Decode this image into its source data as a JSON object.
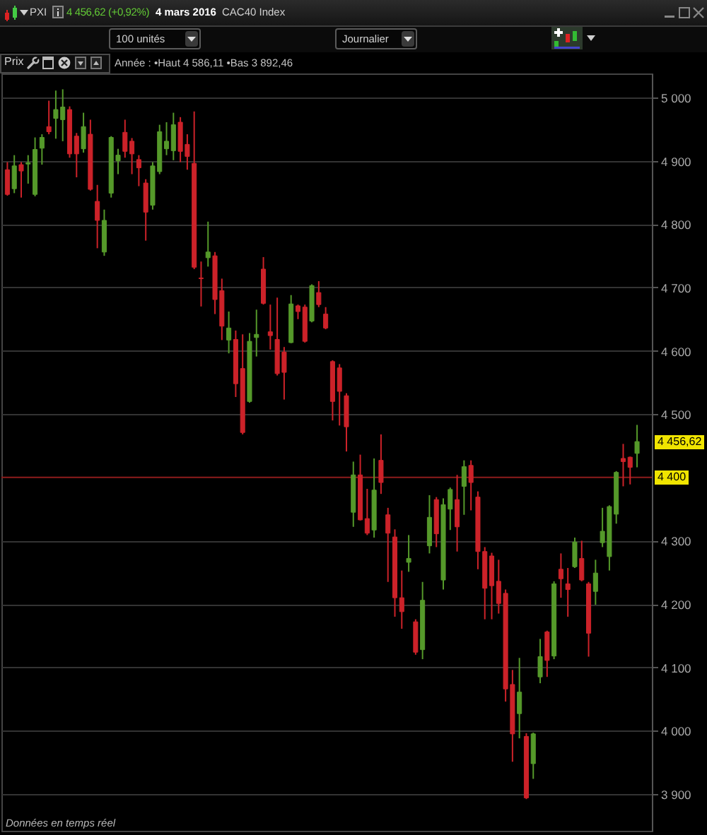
{
  "chart_data": {
    "type": "candlestick",
    "title": "PXI",
    "categories": [
      null,
      null,
      null,
      null,
      null,
      null,
      null,
      null,
      null,
      null,
      null,
      null,
      null,
      null,
      null,
      null,
      null,
      null,
      null,
      null,
      null,
      null,
      null,
      null,
      null,
      null,
      null,
      null,
      null,
      null,
      null,
      null,
      null,
      null,
      null,
      null,
      null,
      null,
      null,
      null,
      null,
      null,
      null,
      null,
      null,
      null,
      null,
      null,
      null,
      null,
      null,
      null,
      null,
      null,
      null,
      null,
      null,
      null,
      null,
      null,
      null,
      null,
      null,
      null,
      null,
      null,
      null,
      null,
      null,
      null,
      null,
      null,
      null,
      null,
      null,
      null,
      null,
      null,
      null,
      null,
      null,
      null,
      null,
      null,
      null,
      null,
      null,
      null,
      null,
      null,
      null,
      null
    ],
    "ohlc": [
      [
        4886,
        4898,
        4845,
        4847
      ],
      [
        4856,
        4909,
        4849,
        4892
      ],
      [
        4894,
        4898,
        4842,
        4884
      ],
      [
        4895,
        4909,
        4864,
        4897
      ],
      [
        4847,
        4937,
        4844,
        4918
      ],
      [
        4920,
        4942,
        4894,
        4937
      ],
      [
        4954,
        4995,
        4942,
        4946
      ],
      [
        4967,
        5011,
        4935,
        4981
      ],
      [
        4965,
        5013,
        4931,
        4985
      ],
      [
        4981,
        4986,
        4905,
        4911
      ],
      [
        4939,
        4944,
        4874,
        4911
      ],
      [
        4919,
        4976,
        4913,
        4954
      ],
      [
        4942,
        4965,
        4853,
        4855
      ],
      [
        4836,
        4862,
        4762,
        4806
      ],
      [
        4756,
        4823,
        4750,
        4806
      ],
      [
        4849,
        4939,
        4842,
        4937
      ],
      [
        4900,
        4919,
        4879,
        4909
      ],
      [
        4945,
        4965,
        4905,
        4915
      ],
      [
        4931,
        4936,
        4879,
        4911
      ],
      [
        4902,
        4909,
        4860,
        4889
      ],
      [
        4865,
        4871,
        4774,
        4819
      ],
      [
        4830,
        4898,
        4823,
        4892
      ],
      [
        4883,
        4957,
        4879,
        4946
      ],
      [
        4919,
        4961,
        4909,
        4931
      ],
      [
        4916,
        4976,
        4901,
        4957
      ],
      [
        4961,
        4969,
        4898,
        4915
      ],
      [
        4926,
        4942,
        4886,
        4907
      ],
      [
        4896,
        4978,
        4729,
        4732
      ],
      [
        4715,
        4741,
        4670,
        4714
      ],
      [
        4747,
        4804,
        4733,
        4756
      ],
      [
        4750,
        4756,
        4658,
        4681
      ],
      [
        4695,
        4714,
        4617,
        4639
      ],
      [
        4617,
        4662,
        4596,
        4636
      ],
      [
        4618,
        4632,
        4527,
        4548
      ],
      [
        4572,
        4626,
        4468,
        4471
      ],
      [
        4520,
        4628,
        4518,
        4615
      ],
      [
        4621,
        4665,
        4591,
        4626
      ],
      [
        4729,
        4748,
        4673,
        4675
      ],
      [
        4630,
        4673,
        4602,
        4624
      ],
      [
        4618,
        4684,
        4561,
        4564
      ],
      [
        4598,
        4606,
        4523,
        4566
      ],
      [
        4613,
        4688,
        4612,
        4674
      ],
      [
        4671,
        4673,
        4650,
        4662
      ],
      [
        4669,
        4673,
        4613,
        4615
      ],
      [
        4647,
        4705,
        4645,
        4703
      ],
      [
        4692,
        4710,
        4669,
        4673
      ],
      [
        4658,
        4669,
        4634,
        4636
      ],
      [
        4583,
        4585,
        4490,
        4520
      ],
      [
        4573,
        4579,
        4482,
        4536
      ],
      [
        4529,
        4533,
        4441,
        4480
      ],
      [
        4345,
        4425,
        4322,
        4404
      ],
      [
        4404,
        4436,
        4332,
        4333
      ],
      [
        4335,
        4382,
        4309,
        4312
      ],
      [
        4317,
        4430,
        4305,
        4380
      ],
      [
        4427,
        4468,
        4374,
        4392
      ],
      [
        4341,
        4352,
        4235,
        4312
      ],
      [
        4306,
        4318,
        4180,
        4210
      ],
      [
        4210,
        4253,
        4161,
        4188
      ],
      [
        4266,
        4309,
        4251,
        4272
      ],
      [
        4172,
        4176,
        4120,
        4124
      ],
      [
        4128,
        4235,
        4113,
        4206
      ],
      [
        4292,
        4372,
        4280,
        4337
      ],
      [
        4365,
        4369,
        4290,
        4311
      ],
      [
        4238,
        4367,
        4223,
        4357
      ],
      [
        4350,
        4384,
        4317,
        4381
      ],
      [
        4365,
        4404,
        4283,
        4322
      ],
      [
        4386,
        4427,
        4341,
        4417
      ],
      [
        4419,
        4427,
        4348,
        4392
      ],
      [
        4369,
        4378,
        4255,
        4283
      ],
      [
        4283,
        4290,
        4176,
        4225
      ],
      [
        4276,
        4281,
        4176,
        4229
      ],
      [
        4236,
        4270,
        4185,
        4201
      ],
      [
        4217,
        4223,
        4046,
        4066
      ],
      [
        4073,
        4096,
        3951,
        3995
      ],
      [
        4027,
        4115,
        3988,
        4061
      ],
      [
        3991,
        3996,
        3892,
        3894
      ],
      [
        3948,
        3997,
        3924,
        3995
      ],
      [
        4085,
        4145,
        4075,
        4117
      ],
      [
        4156,
        4158,
        4085,
        4111
      ],
      [
        4118,
        4236,
        4113,
        4232
      ],
      [
        4255,
        4280,
        4210,
        4240
      ],
      [
        4232,
        4257,
        4180,
        4223
      ],
      [
        4259,
        4305,
        4257,
        4298
      ],
      [
        4272,
        4300,
        4236,
        4238
      ],
      [
        4232,
        4235,
        4117,
        4154
      ],
      [
        4220,
        4270,
        4199,
        4249
      ],
      [
        4297,
        4352,
        4290,
        4315
      ],
      [
        4275,
        4356,
        4253,
        4354
      ],
      [
        4342,
        4410,
        4327,
        4408
      ],
      [
        4430,
        4453,
        4386,
        4425
      ],
      [
        4432,
        4433,
        4389,
        4416
      ],
      [
        4438,
        4483,
        4416,
        4456.62
      ]
    ],
    "colors": [
      "#cc2229",
      "#55992a",
      "#cc2229",
      "#55992a",
      "#55992a",
      "#55992a",
      "#cc2229",
      "#55992a",
      "#55992a",
      "#cc2229",
      "#cc2229",
      "#55992a",
      "#cc2229",
      "#cc2229",
      "#55992a",
      "#55992a",
      "#55992a",
      "#cc2229",
      "#cc2229",
      "#cc2229",
      "#cc2229",
      "#55992a",
      "#55992a",
      "#55992a",
      "#55992a",
      "#cc2229",
      "#cc2229",
      "#cc2229",
      "#cc2229",
      "#55992a",
      "#cc2229",
      "#cc2229",
      "#55992a",
      "#cc2229",
      "#cc2229",
      "#55992a",
      "#55992a",
      "#cc2229",
      "#cc2229",
      "#cc2229",
      "#cc2229",
      "#55992a",
      "#cc2229",
      "#cc2229",
      "#55992a",
      "#cc2229",
      "#cc2229",
      "#cc2229",
      "#cc2229",
      "#cc2229",
      "#55992a",
      "#cc2229",
      "#cc2229",
      "#55992a",
      "#cc2229",
      "#cc2229",
      "#cc2229",
      "#cc2229",
      "#55992a",
      "#cc2229",
      "#55992a",
      "#55992a",
      "#cc2229",
      "#55992a",
      "#55992a",
      "#cc2229",
      "#55992a",
      "#cc2229",
      "#cc2229",
      "#cc2229",
      "#cc2229",
      "#cc2229",
      "#cc2229",
      "#cc2229",
      "#55992a",
      "#cc2229",
      "#55992a",
      "#55992a",
      "#cc2229",
      "#55992a",
      "#cc2229",
      "#cc2229",
      "#55992a",
      "#cc2229",
      "#cc2229",
      "#55992a",
      "#55992a",
      "#55992a",
      "#55992a",
      "#cc2229",
      "#cc2229",
      "#55992a"
    ],
    "ylim": [
      3842,
      5038
    ],
    "yticks": [
      {
        "value": 5000,
        "label": "5 000"
      },
      {
        "value": 4900,
        "label": "4 900"
      },
      {
        "value": 4800,
        "label": "4 800"
      },
      {
        "value": 4700,
        "label": "4 700"
      },
      {
        "value": 4600,
        "label": "4 600"
      },
      {
        "value": 4500,
        "label": "4 500"
      },
      {
        "value": 4300,
        "label": "4 300"
      },
      {
        "value": 4200,
        "label": "4 200"
      },
      {
        "value": 4100,
        "label": "4 100"
      },
      {
        "value": 4000,
        "label": "4 000"
      },
      {
        "value": 3900,
        "label": "3 900"
      }
    ],
    "grid": "y",
    "tick_labels": "y",
    "ref_lines": [
      {
        "axis": "y",
        "value": 4400,
        "label": "4 400",
        "color": "#8e1c1c"
      }
    ],
    "annotations": [
      "4 456,62 (+0,92%)",
      "4 mars 2016",
      "CAC40 Index",
      "100 unités",
      "Journalier",
      "Prix",
      "Année : •Haut 4 586,11 •Bas 3 892,46",
      "Données en temps réel",
      "4 456,62"
    ]
  }
}
